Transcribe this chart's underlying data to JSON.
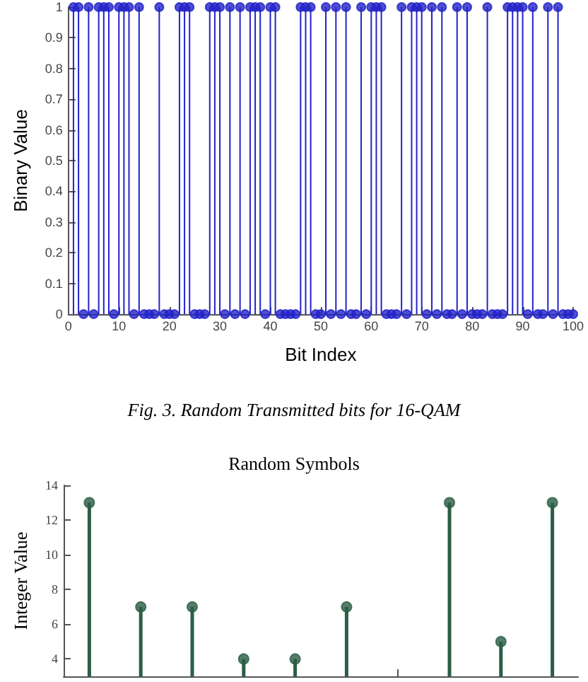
{
  "chart_data": [
    {
      "type": "lollipop",
      "xlabel": "Bit Index",
      "ylabel": "Binary Value",
      "annotations": [
        "Fig. 3.  Random Transmitted bits for 16-QAM"
      ],
      "xlim": [
        0,
        100
      ],
      "xticks": [
        0,
        10,
        20,
        30,
        40,
        50,
        60,
        70,
        80,
        90,
        100
      ],
      "ylim": [
        0,
        1
      ],
      "yticks": [
        0,
        0.1,
        0.2,
        0.3,
        0.4,
        0.5,
        0.6,
        0.7,
        0.8,
        0.9,
        1
      ],
      "grid": false,
      "marker": "circle",
      "x": [
        1,
        2,
        3,
        4,
        5,
        6,
        7,
        8,
        9,
        10,
        11,
        12,
        13,
        14,
        15,
        16,
        17,
        18,
        19,
        20,
        21,
        22,
        23,
        24,
        25,
        26,
        27,
        28,
        29,
        30,
        31,
        32,
        33,
        34,
        35,
        36,
        37,
        38,
        39,
        40,
        41,
        42,
        43,
        44,
        45,
        46,
        47,
        48,
        49,
        50,
        51,
        52,
        53,
        54,
        55,
        56,
        57,
        58,
        59,
        60,
        61,
        62,
        63,
        64,
        65,
        66,
        67,
        68,
        69,
        70,
        71,
        72,
        73,
        74,
        75,
        76,
        77,
        78,
        79,
        80,
        81,
        82,
        83,
        84,
        85,
        86,
        87,
        88,
        89,
        90,
        91,
        92,
        93,
        94,
        95,
        96,
        97,
        98,
        99,
        100
      ],
      "series": [
        {
          "color": "#2323c8",
          "values": [
            1,
            1,
            0,
            1,
            0,
            1,
            1,
            1,
            0,
            1,
            1,
            1,
            0,
            1,
            0,
            0,
            0,
            1,
            0,
            0,
            0,
            1,
            1,
            1,
            0,
            0,
            0,
            1,
            1,
            1,
            0,
            1,
            0,
            1,
            0,
            1,
            1,
            1,
            0,
            1,
            1,
            0,
            0,
            0,
            0,
            1,
            1,
            1,
            0,
            0,
            1,
            0,
            1,
            0,
            1,
            0,
            0,
            1,
            0,
            1,
            1,
            1,
            0,
            0,
            0,
            1,
            0,
            1,
            1,
            1,
            0,
            1,
            0,
            1,
            0,
            0,
            1,
            0,
            1,
            0,
            0,
            0,
            1,
            0,
            0,
            0,
            1,
            1,
            1,
            1,
            0,
            1,
            0,
            0,
            1,
            0,
            1,
            0,
            0,
            0
          ]
        }
      ]
    },
    {
      "type": "lollipop",
      "title": "Random Symbols",
      "ylabel": "Integer Value",
      "categories": [
        null,
        null,
        null,
        null,
        null,
        null,
        null,
        null,
        null,
        null
      ],
      "ylim": [
        3,
        14
      ],
      "yticks": [
        4,
        6,
        8,
        10,
        12,
        14
      ],
      "grid": false,
      "marker": "circle",
      "tick_labels": "y",
      "series": [
        {
          "color": "#2b5e45",
          "values": [
            13,
            7,
            7,
            4,
            4,
            7,
            null,
            13,
            5,
            13
          ]
        }
      ]
    }
  ]
}
